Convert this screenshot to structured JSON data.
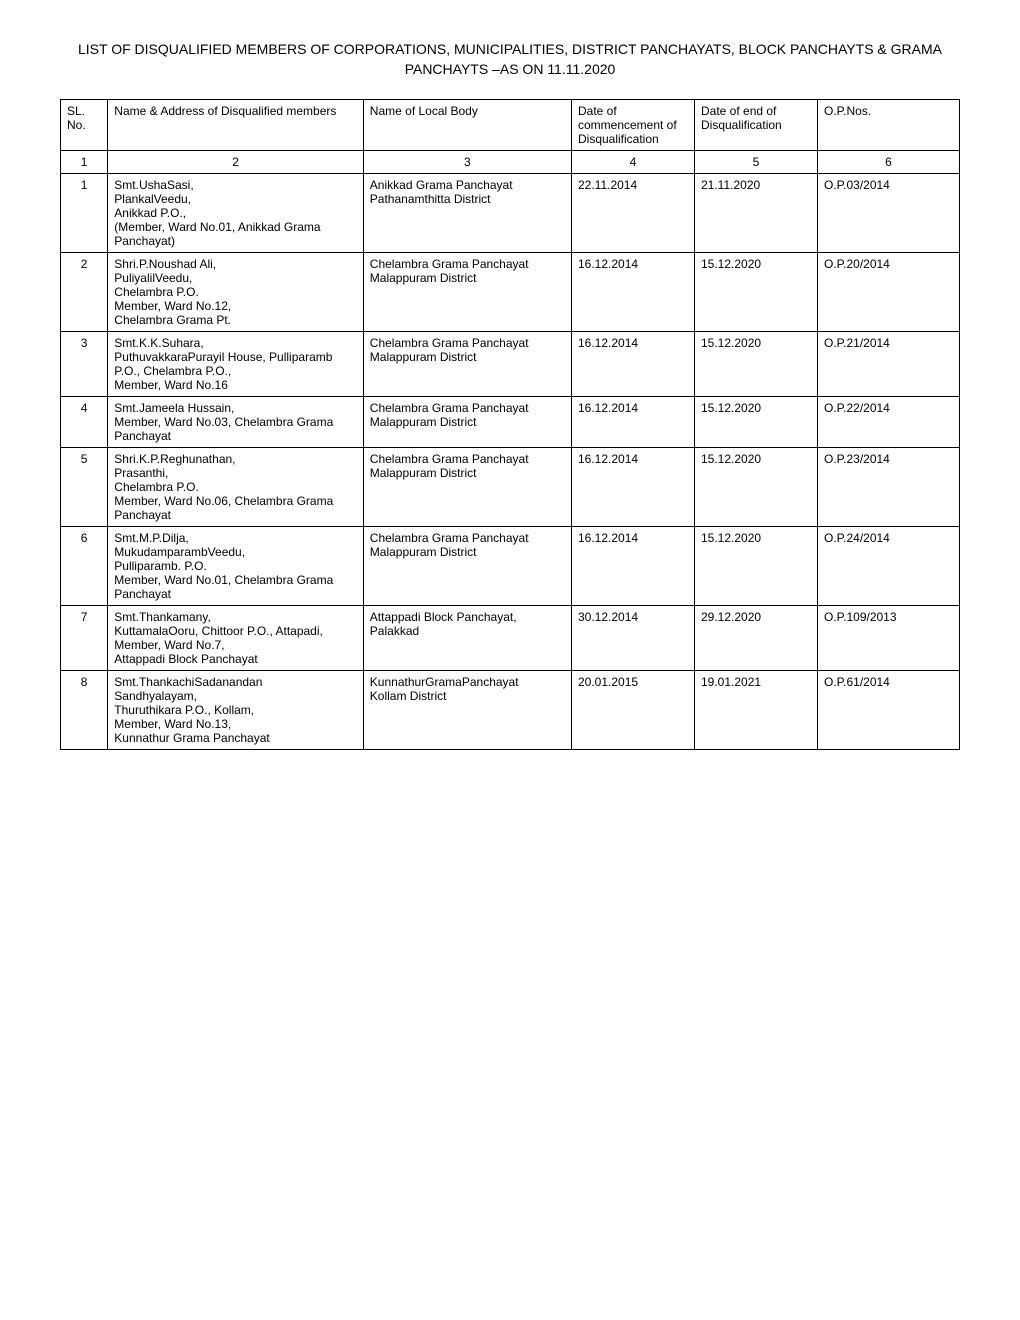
{
  "title": "LIST OF DISQUALIFIED MEMBERS OF CORPORATIONS, MUNICIPALITIES, DISTRICT PANCHAYATS, BLOCK PANCHAYTS & GRAMA PANCHAYTS –AS ON 11.11.2020",
  "columns": {
    "sl": "SL.\nNo.",
    "name": "Name & Address of Disqualified members",
    "body": "Name of Local Body",
    "start": "Date of commencement of Disqualification",
    "end": "Date of end of Disqualification",
    "op": "O.P.Nos."
  },
  "header_numbers": [
    "1",
    "2",
    "3",
    "4",
    "5",
    "6"
  ],
  "rows": [
    {
      "sl": "1",
      "name": "Smt.UshaSasi,\nPlankalVeedu,\nAnikkad P.O.,\n (Member, Ward No.01, Anikkad Grama Panchayat)",
      "body": "Anikkad Grama Panchayat\nPathanamthitta District",
      "start": "22.11.2014",
      "end": "21.11.2020",
      "op": "O.P.03/2014"
    },
    {
      "sl": "2",
      "name": "Shri.P.Noushad Ali,\nPuliyalilVeedu,\nChelambra P.O.\nMember, Ward No.12,\nChelambra Grama Pt.",
      "body": "Chelambra Grama Panchayat\nMalappuram District",
      "start": "16.12.2014",
      "end": "15.12.2020",
      "op": "O.P.20/2014"
    },
    {
      "sl": "3",
      "name": "Smt.K.K.Suhara,\nPuthuvakkaraPurayil House, Pulliparamb P.O., Chelambra P.O.,\nMember, Ward No.16",
      "body": "Chelambra Grama Panchayat\nMalappuram District",
      "start": "16.12.2014",
      "end": "15.12.2020",
      "op": "O.P.21/2014"
    },
    {
      "sl": "4",
      "name": "Smt.Jameela Hussain,\nMember, Ward No.03, Chelambra Grama Panchayat",
      "body": "Chelambra Grama Panchayat\nMalappuram District",
      "start": "16.12.2014",
      "end": "15.12.2020",
      "op": "O.P.22/2014"
    },
    {
      "sl": "5",
      "name": "Shri.K.P.Reghunathan,\nPrasanthi,\nChelambra P.O.\nMember, Ward No.06, Chelambra Grama Panchayat",
      "body": "Chelambra Grama Panchayat\nMalappuram District",
      "start": "16.12.2014",
      "end": "15.12.2020",
      "op": "O.P.23/2014"
    },
    {
      "sl": "6",
      "name": "Smt.M.P.Dilja,\nMukudamparambVeedu,\nPulliparamb. P.O.\nMember, Ward No.01, Chelambra Grama Panchayat",
      "body": "Chelambra Grama Panchayat\nMalappuram District",
      "start": "16.12.2014",
      "end": "15.12.2020",
      "op": "O.P.24/2014"
    },
    {
      "sl": "7",
      "name": "Smt.Thankamany,\nKuttamalaOoru, Chittoor P.O., Attapadi,\nMember, Ward No.7,\nAttappadi Block Panchayat",
      "body": "Attappadi Block Panchayat, Palakkad",
      "start": "30.12.2014",
      "end": "29.12.2020",
      "op": "O.P.109/2013"
    },
    {
      "sl": "8",
      "name": "Smt.ThankachiSadanandan\nSandhyalayam,\nThuruthikara P.O., Kollam,\nMember, Ward No.13,\nKunnathur Grama Panchayat",
      "body": "KunnathurGramaPanchayat\nKollam District",
      "start": "20.01.2015",
      "end": "19.01.2021",
      "op": "O.P.61/2014"
    }
  ]
}
